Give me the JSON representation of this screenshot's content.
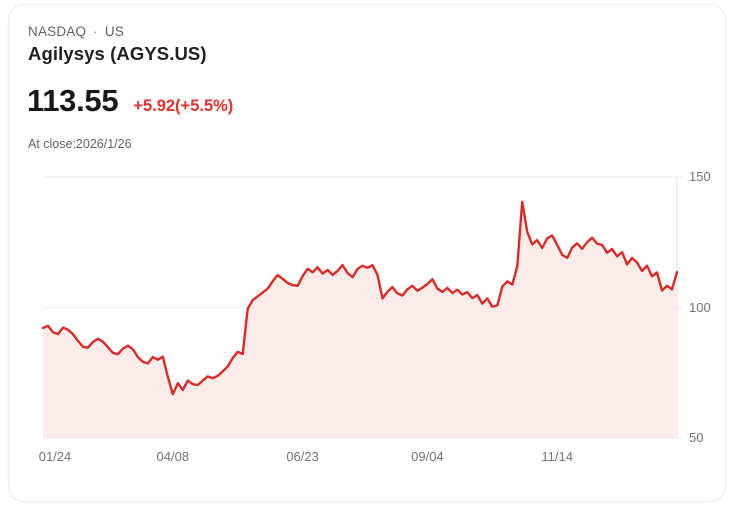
{
  "header": {
    "exchange": "NASDAQ",
    "separator": "·",
    "market": "US",
    "title": "Agilysys (AGYS.US)"
  },
  "quote": {
    "price": "113.55",
    "change": "+5.92(+5.5%)",
    "as_of": "At close:2026/1/26",
    "change_color": "#e5322d"
  },
  "chart_data": {
    "type": "area",
    "title": "Agilysys (AGYS.US) 1-year price history",
    "ylabel": "",
    "xlabel": "",
    "ylim": [
      50,
      150
    ],
    "y_ticks": [
      150,
      100,
      50
    ],
    "y_tick_labels": [
      "150",
      "100",
      "50"
    ],
    "x_tick_labels": [
      "01/24",
      "04/08",
      "06/23",
      "09/04",
      "11/14"
    ],
    "x_tick_indices": [
      0,
      26,
      52,
      77,
      103
    ],
    "grid": "horizontal",
    "legend": "none",
    "line_color": "#dc2b26",
    "fill_color": "#fbecea",
    "grid_color": "#e8e8e8",
    "axis_line_color": "#e0e0e0",
    "axis_text_color": "#6f747b",
    "last_value": 113.55,
    "values": [
      92.2,
      93.0,
      90.5,
      89.8,
      92.3,
      91.5,
      89.8,
      87.2,
      85.0,
      84.6,
      86.8,
      88.0,
      86.9,
      84.8,
      82.6,
      82.1,
      84.2,
      85.4,
      84.0,
      81.0,
      79.2,
      78.6,
      81.0,
      80.0,
      81.2,
      73.5,
      66.8,
      71.0,
      68.4,
      72.0,
      70.6,
      70.3,
      72.0,
      73.6,
      72.9,
      73.8,
      75.5,
      77.4,
      80.6,
      83.0,
      82.2,
      99.5,
      102.8,
      104.3,
      105.8,
      107.2,
      110.0,
      112.4,
      111.0,
      109.4,
      108.6,
      108.3,
      112.0,
      114.8,
      113.5,
      115.4,
      113.0,
      114.4,
      112.5,
      114.0,
      116.3,
      113.2,
      111.6,
      114.8,
      116.0,
      115.2,
      116.2,
      112.5,
      103.5,
      106.0,
      107.8,
      105.4,
      104.6,
      107.0,
      108.3,
      106.4,
      107.6,
      109.0,
      110.8,
      107.2,
      106.0,
      107.5,
      105.5,
      106.8,
      105.0,
      105.9,
      103.6,
      104.8,
      101.5,
      103.5,
      100.3,
      100.8,
      108.0,
      110.0,
      108.8,
      115.8,
      140.5,
      129.0,
      124.2,
      125.8,
      122.8,
      126.5,
      127.6,
      124.0,
      120.2,
      119.0,
      123.0,
      124.6,
      122.5,
      125.0,
      126.8,
      124.5,
      124.0,
      121.0,
      122.4,
      119.6,
      121.2,
      116.5,
      119.0,
      117.2,
      114.0,
      116.0,
      112.0,
      113.4,
      106.5,
      108.3,
      107.0,
      113.55
    ]
  }
}
